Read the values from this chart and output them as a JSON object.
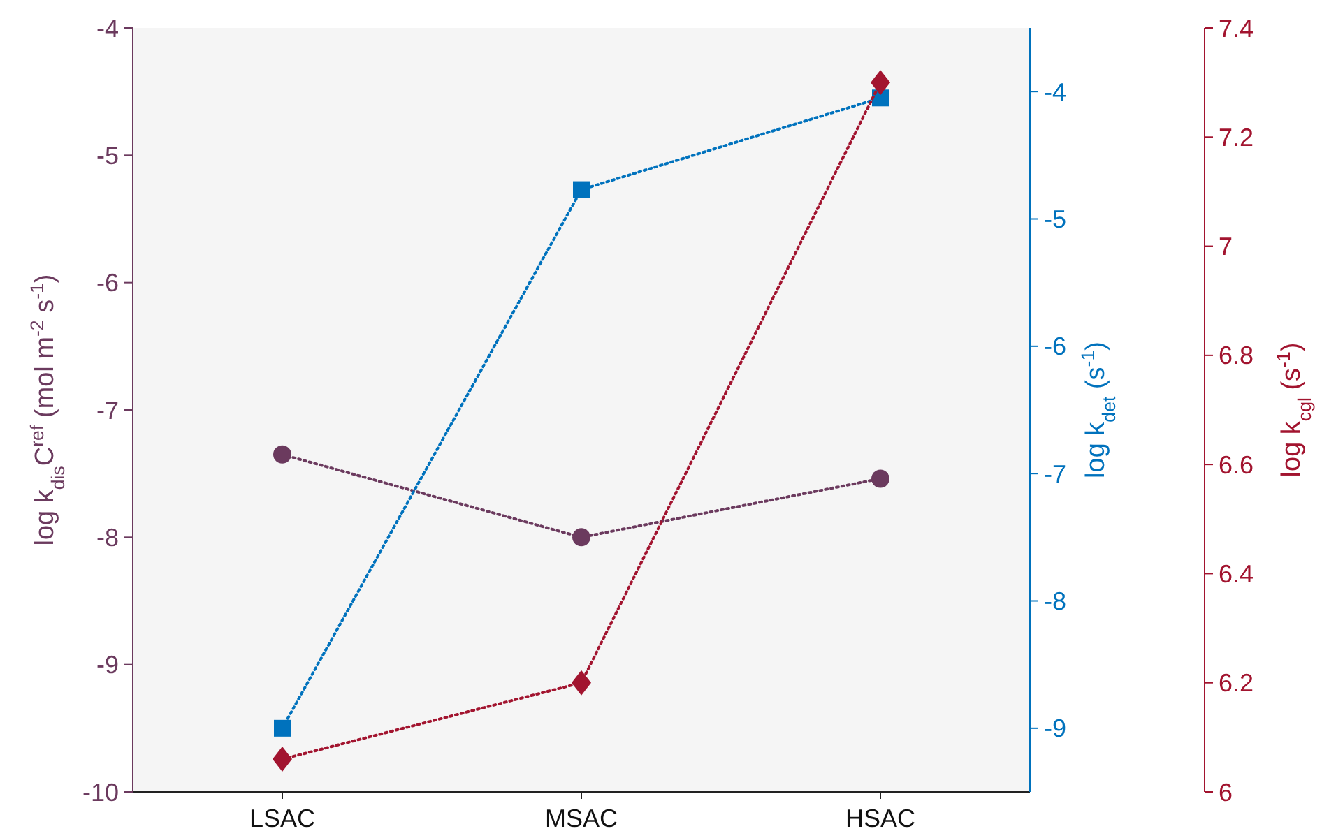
{
  "chart_data": {
    "type": "line",
    "categories": [
      "LSAC",
      "MSAC",
      "HSAC"
    ],
    "ylabel": "log k$_{dis}$C$^{ref}$ (mol m$^{-2}$ s$^{-1}$)",
    "y2label": "log k$_{det}$ (s$^{-1}$)",
    "y3label": "log k$_{cgl}$ (s$^{-1}$)",
    "ylim": [
      -10,
      -4
    ],
    "yticks": [
      -10,
      -9,
      -8,
      -7,
      -6,
      -5,
      -4
    ],
    "y2lim": [
      -9.5,
      -3.5
    ],
    "y2ticks": [
      -9,
      -8,
      -7,
      -6,
      -5,
      -4
    ],
    "y3lim": [
      6,
      7.4
    ],
    "y3ticks": [
      6,
      6.2,
      6.4,
      6.6,
      6.8,
      7,
      7.2,
      7.4
    ],
    "line_style": "dotted",
    "series": [
      {
        "color": "#6b3a5e",
        "values": [
          -7.35,
          -8.0,
          -7.54
        ],
        "marker": "circle"
      },
      {
        "color": "#0072bd",
        "values": [
          -9.0,
          -4.77,
          -4.05
        ],
        "marker": "square",
        "axis": "y2"
      },
      {
        "color": "#a2142f",
        "values": [
          6.06,
          6.2,
          7.3
        ],
        "marker": "diamond",
        "axis": "y3"
      }
    ]
  }
}
